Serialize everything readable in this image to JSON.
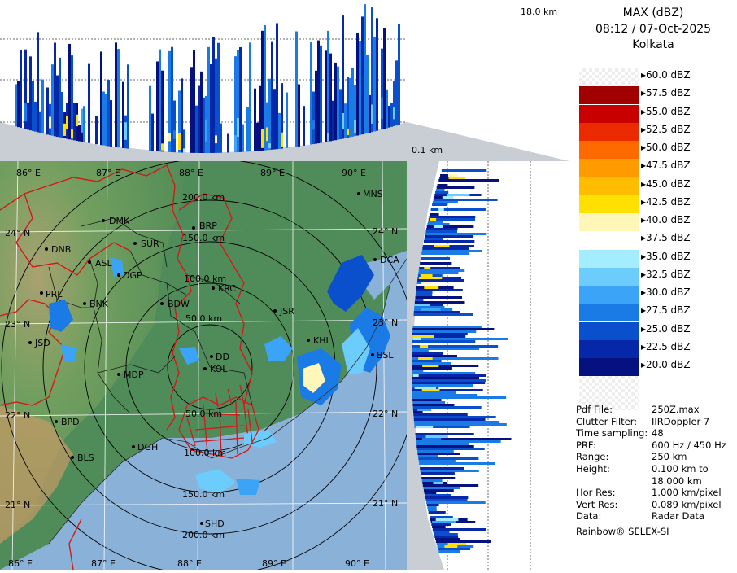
{
  "header": {
    "product": "MAX (dBZ)",
    "datetime": "08:12 / 07-Oct-2025",
    "station": "Kolkata"
  },
  "height_labels": {
    "top": "18.0 km",
    "bottom": "0.1 km"
  },
  "legend": {
    "items": [
      {
        "label": "60.0 dBZ",
        "color": "checker"
      },
      {
        "label": "57.5 dBZ",
        "color": "#a00000"
      },
      {
        "label": "55.0 dBZ",
        "color": "#c80000"
      },
      {
        "label": "52.5 dBZ",
        "color": "#ec2a00"
      },
      {
        "label": "50.0 dBZ",
        "color": "#ff6a00"
      },
      {
        "label": "47.5 dBZ",
        "color": "#ff9a00"
      },
      {
        "label": "45.0 dBZ",
        "color": "#ffbd00"
      },
      {
        "label": "42.5 dBZ",
        "color": "#ffe000"
      },
      {
        "label": "40.0 dBZ",
        "color": "#fff7b8"
      },
      {
        "label": "37.5 dBZ",
        "color": "#ffffff"
      },
      {
        "label": "35.0 dBZ",
        "color": "#a4ecff"
      },
      {
        "label": "32.5 dBZ",
        "color": "#6ccdfc"
      },
      {
        "label": "30.0 dBZ",
        "color": "#3ba4f6"
      },
      {
        "label": "27.5 dBZ",
        "color": "#1a7ae6"
      },
      {
        "label": "25.0 dBZ",
        "color": "#0a4fcb"
      },
      {
        "label": "22.5 dBZ",
        "color": "#0628a8"
      },
      {
        "label": "20.0 dBZ",
        "color": "#04117f"
      }
    ]
  },
  "meta": [
    {
      "key": "Pdf File:",
      "value": "250Z.max"
    },
    {
      "key": "Clutter Filter:",
      "value": "IIRDoppler 7"
    },
    {
      "key": "Time sampling:",
      "value": "48"
    },
    {
      "key": "PRF:",
      "value": "600 Hz / 450 Hz"
    },
    {
      "key": "Range:",
      "value": "250 km"
    },
    {
      "key": "Height:",
      "value": "0.100 km to"
    },
    {
      "key": "",
      "value": "18.000 km"
    },
    {
      "key": "Hor Res:",
      "value": "1.000 km/pixel"
    },
    {
      "key": "Vert Res:",
      "value": "0.089 km/pixel"
    },
    {
      "key": "Data:",
      "value": "Radar Data"
    }
  ],
  "footer": "Rainbow® SELEX-SI",
  "map": {
    "lon_labels_top": [
      "86° E",
      "87° E",
      "88° E",
      "89° E",
      "90° E"
    ],
    "lon_labels_bottom": [
      "86° E",
      "87° E",
      "88° E",
      "89° E",
      "90° E"
    ],
    "lat_labels_left": [
      "24° N",
      "23° N",
      "22° N",
      "21° N"
    ],
    "lat_labels_right": [
      "24° N",
      "23° N",
      "22° N",
      "21° N"
    ],
    "rings": [
      "50.0 km",
      "100.0 km",
      "150.0 km",
      "200.0 km"
    ],
    "rings_south": [
      "50.0 km",
      "100.0 km",
      "150.0 km",
      "200.0 km"
    ],
    "cities": [
      "DMK",
      "BRP",
      "MNS",
      "SUR",
      "DNB",
      "ASL",
      "DGP",
      "KRC",
      "DCA",
      "PRL",
      "BNK",
      "BDW",
      "JSR",
      "KHL",
      "BSL",
      "JSD",
      "DD",
      "MDP",
      "KOL",
      "BPD",
      "DGH",
      "BLS",
      "SHD"
    ]
  }
}
